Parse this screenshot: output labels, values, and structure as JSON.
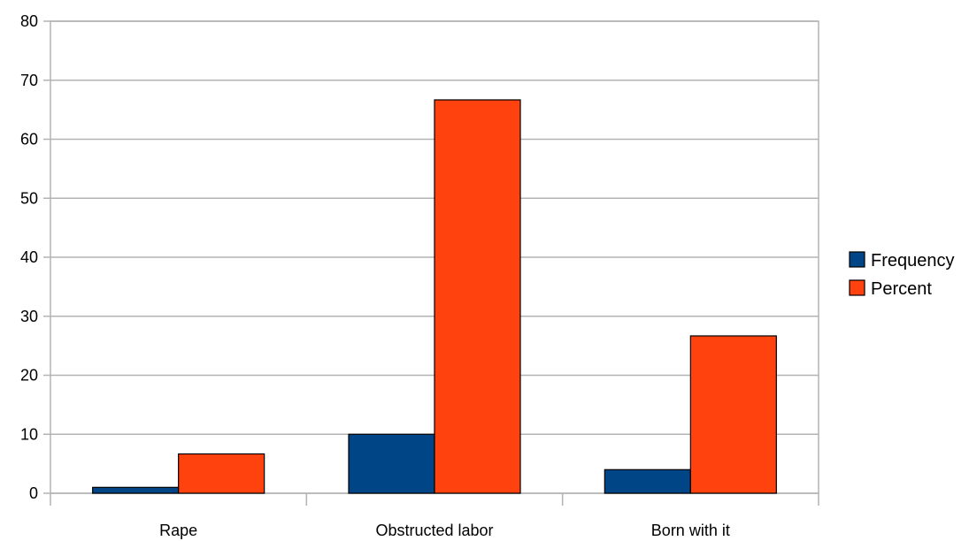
{
  "chart_data": {
    "type": "bar",
    "categories": [
      "Rape",
      "Obstructed labor",
      "Born with it"
    ],
    "series": [
      {
        "name": "Frequency",
        "values": [
          1,
          10,
          4
        ]
      },
      {
        "name": "Percent",
        "values": [
          6.67,
          66.67,
          26.67
        ]
      }
    ],
    "ylim": [
      0,
      80
    ],
    "yticks": [
      0,
      10,
      20,
      30,
      40,
      50,
      60,
      70,
      80
    ],
    "grid": true,
    "legend_position": "right",
    "colors": [
      "#004586",
      "#ff420e"
    ]
  }
}
